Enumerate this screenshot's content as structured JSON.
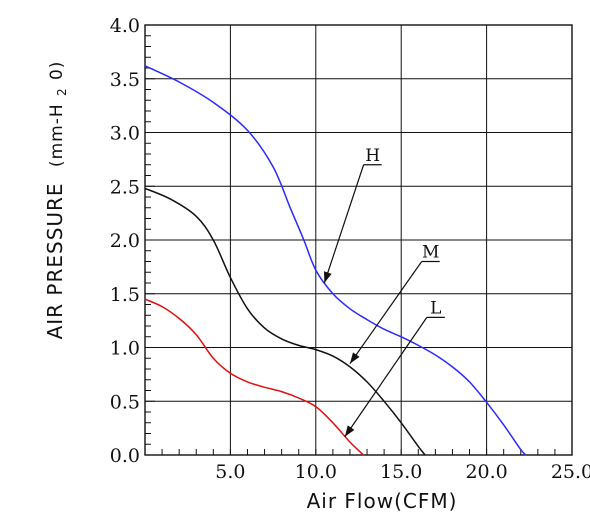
{
  "chart_data": {
    "type": "line",
    "xlabel": "Air Flow(CFM)",
    "ylabel_main": "AIR PRESSURE",
    "ylabel_unit": "(mm-H",
    "ylabel_sub": "2",
    "ylabel_end": "0)",
    "xlim": [
      0,
      25
    ],
    "ylim": [
      0,
      4
    ],
    "x_ticks": [
      5,
      10,
      15,
      20,
      25
    ],
    "x_tick_labels": [
      "5.0",
      "10.0",
      "15.0",
      "20.0",
      "25.0"
    ],
    "y_ticks": [
      0,
      0.5,
      1,
      1.5,
      2,
      2.5,
      3,
      3.5,
      4
    ],
    "y_tick_labels": [
      "0.0",
      "0.5",
      "1.0",
      "1.5",
      "2.0",
      "2.5",
      "3.0",
      "3.5",
      "4.0"
    ],
    "grid": true,
    "series": [
      {
        "name": "H",
        "color": "#2a2aff",
        "points": [
          [
            0,
            3.62
          ],
          [
            2,
            3.47
          ],
          [
            4,
            3.28
          ],
          [
            6,
            3.02
          ],
          [
            7.5,
            2.68
          ],
          [
            8.5,
            2.3
          ],
          [
            9.3,
            2.0
          ],
          [
            10,
            1.72
          ],
          [
            11,
            1.5
          ],
          [
            12,
            1.36
          ],
          [
            13,
            1.26
          ],
          [
            14,
            1.17
          ],
          [
            15,
            1.1
          ],
          [
            16,
            1.02
          ],
          [
            17,
            0.93
          ],
          [
            18,
            0.82
          ],
          [
            19,
            0.68
          ],
          [
            20,
            0.49
          ],
          [
            21,
            0.28
          ],
          [
            22,
            0.05
          ],
          [
            22.3,
            0
          ]
        ]
      },
      {
        "name": "M",
        "color": "#111111",
        "points": [
          [
            0,
            2.48
          ],
          [
            1.5,
            2.38
          ],
          [
            3,
            2.22
          ],
          [
            4,
            2.0
          ],
          [
            5,
            1.65
          ],
          [
            6,
            1.36
          ],
          [
            7,
            1.18
          ],
          [
            8,
            1.08
          ],
          [
            9,
            1.02
          ],
          [
            10,
            0.98
          ],
          [
            11,
            0.92
          ],
          [
            12,
            0.82
          ],
          [
            13,
            0.68
          ],
          [
            14,
            0.5
          ],
          [
            15,
            0.3
          ],
          [
            16,
            0.08
          ],
          [
            16.4,
            0
          ]
        ]
      },
      {
        "name": "L",
        "color": "#e01010",
        "points": [
          [
            0,
            1.45
          ],
          [
            1,
            1.38
          ],
          [
            2,
            1.27
          ],
          [
            3,
            1.12
          ],
          [
            4,
            0.9
          ],
          [
            5,
            0.76
          ],
          [
            6,
            0.68
          ],
          [
            7,
            0.63
          ],
          [
            8,
            0.59
          ],
          [
            9,
            0.53
          ],
          [
            10,
            0.45
          ],
          [
            11,
            0.3
          ],
          [
            12,
            0.12
          ],
          [
            12.8,
            0
          ]
        ]
      }
    ],
    "annotations": [
      {
        "series": "H",
        "text": "H",
        "at": [
          10.5,
          1.6
        ],
        "label_at": [
          12.8,
          2.7
        ]
      },
      {
        "series": "M",
        "text": "M",
        "at": [
          12,
          0.85
        ],
        "label_at": [
          16.2,
          1.8
        ]
      },
      {
        "series": "L",
        "text": "L",
        "at": [
          11.7,
          0.17
        ],
        "label_at": [
          16.5,
          1.28
        ]
      }
    ]
  }
}
